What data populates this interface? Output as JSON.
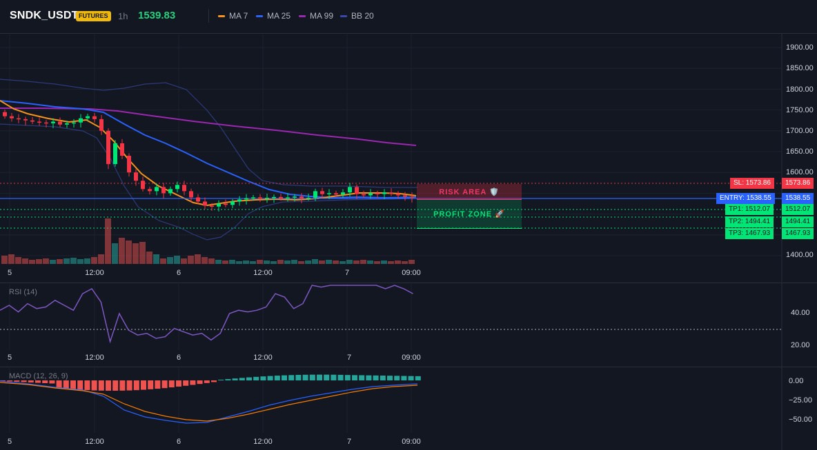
{
  "header": {
    "symbol": "SNDK_USDT",
    "market_badge": "FUTURES",
    "interval": "1h",
    "last_price": "1539.83",
    "legend": [
      {
        "label": "MA 7",
        "color": "#f7931a"
      },
      {
        "label": "MA 25",
        "color": "#2962ff"
      },
      {
        "label": "MA 99",
        "color": "#9c27b0"
      },
      {
        "label": "BB 20",
        "color": "#3949ab"
      }
    ]
  },
  "time_axis": [
    "5",
    "12:00",
    "6",
    "12:00",
    "7",
    "09:00"
  ],
  "main_chart": {
    "price_axis": [
      "1900.00",
      "1850.00",
      "1800.00",
      "1750.00",
      "1700.00",
      "1650.00",
      "1600.00",
      "1400.00"
    ],
    "zones": {
      "risk_label": "RISK AREA 🛡️",
      "profit_label": "PROFIT ZONE 🚀"
    },
    "levels": {
      "sl": {
        "tag": "SL: 1573.86",
        "value": "1573.86",
        "color": "#f23645"
      },
      "entry": {
        "tag": "ENTRY: 1538.55",
        "value": "1538.55",
        "color": "#2962ff"
      },
      "tp1": {
        "tag": "TP1: 1512.07",
        "value": "1512.07",
        "color": "#00e676"
      },
      "tp2": {
        "tag": "TP2: 1494.41",
        "value": "1494.41",
        "color": "#00e676"
      },
      "tp3": {
        "tag": "TP3: 1467.93",
        "value": "1467.93",
        "color": "#00e676"
      }
    },
    "colors": {
      "up": "#26a69a",
      "down": "#ef5350",
      "candle_up": "#00e676",
      "candle_down": "#f23645"
    }
  },
  "rsi": {
    "label": "RSI (14)",
    "axis": [
      "40.00",
      "20.00"
    ],
    "line_color": "#7e57c2"
  },
  "macd": {
    "label": "MACD (12, 26, 9)",
    "axis": [
      "0.00",
      "−25.00",
      "−50.00"
    ],
    "macd_color": "#2962ff",
    "signal_color": "#f57c00"
  },
  "chart_data": {
    "type": "candlestick",
    "price_scale": {
      "min": 1400,
      "max": 1900
    },
    "candles_close_approx": [
      1735,
      1730,
      1728,
      1725,
      1722,
      1720,
      1718,
      1722,
      1715,
      1718,
      1720,
      1730,
      1735,
      1728,
      1700,
      1620,
      1670,
      1640,
      1600,
      1580,
      1560,
      1555,
      1565,
      1550,
      1560,
      1570,
      1555,
      1540,
      1530,
      1520,
      1518,
      1525,
      1522,
      1530,
      1535,
      1538,
      1540,
      1537,
      1539,
      1541,
      1538,
      1540,
      1542,
      1538,
      1539,
      1555,
      1548,
      1550,
      1547,
      1552,
      1565,
      1548,
      1545,
      1550,
      1548,
      1552,
      1549,
      1545,
      1542,
      1540
    ],
    "ma99_approx": [
      1762,
      1760,
      1755,
      1748,
      1738,
      1728,
      1716,
      1705,
      1695,
      1688,
      1680,
      1672,
      1666
    ],
    "rsi_approx": [
      42,
      45,
      41,
      46,
      43,
      44,
      48,
      45,
      42,
      52,
      55,
      47,
      23,
      40,
      30,
      27,
      28,
      25,
      26,
      31,
      29,
      27,
      28,
      24,
      28,
      40,
      42,
      41,
      42,
      44,
      52,
      50,
      43,
      46,
      58,
      56,
      60,
      58,
      63,
      70,
      60,
      61,
      55,
      60,
      55,
      52
    ]
  }
}
